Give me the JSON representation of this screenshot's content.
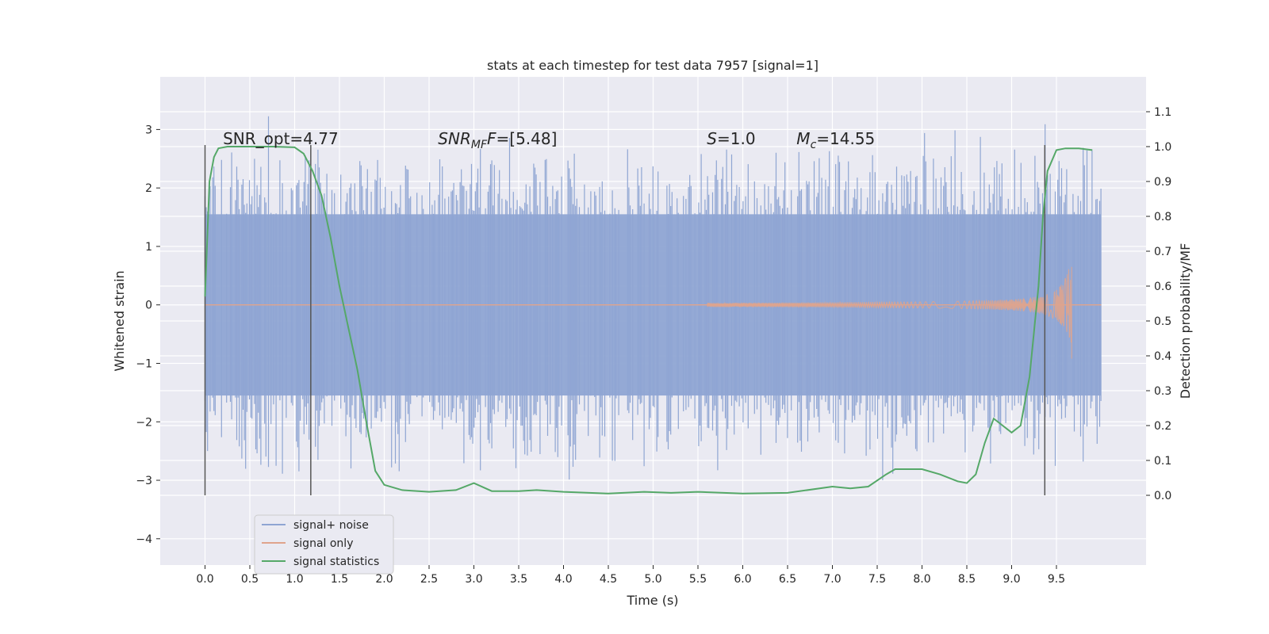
{
  "chart_data": {
    "type": "line",
    "title": "stats at each timestep for test data 7957 [signal=1]",
    "xlabel": "Time (s)",
    "ylabel": "Whitened strain",
    "ylabel_right": "Detection probability/MF",
    "xlim": [
      -0.5,
      10.5
    ],
    "ylim": [
      -4.45,
      3.9
    ],
    "ylim_right": [
      -0.2,
      1.2
    ],
    "x_ticks": [
      "0.0",
      "0.5",
      "1.0",
      "1.5",
      "2.0",
      "2.5",
      "3.0",
      "3.5",
      "4.0",
      "4.5",
      "5.0",
      "5.5",
      "6.0",
      "6.5",
      "7.0",
      "7.5",
      "8.0",
      "8.5",
      "9.0",
      "9.5"
    ],
    "x_tick_values": [
      0.0,
      0.5,
      1.0,
      1.5,
      2.0,
      2.5,
      3.0,
      3.5,
      4.0,
      4.5,
      5.0,
      5.5,
      6.0,
      6.5,
      7.0,
      7.5,
      8.0,
      8.5,
      9.0,
      9.5
    ],
    "y_ticks": [
      "3",
      "2",
      "1",
      "0",
      "−1",
      "−2",
      "−3",
      "−4"
    ],
    "y_tick_values": [
      3,
      2,
      1,
      0,
      -1,
      -2,
      -3,
      -4
    ],
    "y_ticks_right": [
      "1.1",
      "1.0",
      "0.9",
      "0.8",
      "0.7",
      "0.6",
      "0.5",
      "0.4",
      "0.3",
      "0.2",
      "0.1",
      "0.0"
    ],
    "y_tick_values_right": [
      1.1,
      1.0,
      0.9,
      0.8,
      0.7,
      0.6,
      0.5,
      0.4,
      0.3,
      0.2,
      0.1,
      0.0
    ],
    "grid": true,
    "legend_position": "lower-left",
    "series": [
      {
        "name": "signal+ noise",
        "color": "#8fa5d3",
        "kind": "noise",
        "x_range": [
          0,
          10
        ],
        "envelope": 1.55
      },
      {
        "name": "signal only",
        "color": "#e0a48c",
        "kind": "chirp",
        "x_range": [
          0,
          9.67
        ],
        "peak_x": 9.67,
        "peak_y": 0.65,
        "min_y": -0.92
      },
      {
        "name": "signal statistics",
        "color": "#55a868",
        "axis": "right",
        "x": [
          0.0,
          0.05,
          0.1,
          0.15,
          0.25,
          0.5,
          0.75,
          1.0,
          1.1,
          1.2,
          1.3,
          1.4,
          1.5,
          1.6,
          1.7,
          1.8,
          1.9,
          2.0,
          2.2,
          2.5,
          2.8,
          3.0,
          3.2,
          3.5,
          3.7,
          4.0,
          4.5,
          4.9,
          5.2,
          5.5,
          6.0,
          6.5,
          7.0,
          7.2,
          7.4,
          7.6,
          7.7,
          8.0,
          8.2,
          8.4,
          8.5,
          8.6,
          8.7,
          8.8,
          8.9,
          9.0,
          9.1,
          9.2,
          9.3,
          9.35,
          9.4,
          9.5,
          9.6,
          9.75,
          9.9
        ],
        "y": [
          0.57,
          0.9,
          0.97,
          0.995,
          1.0,
          1.0,
          1.0,
          0.998,
          0.98,
          0.93,
          0.86,
          0.74,
          0.6,
          0.48,
          0.36,
          0.21,
          0.07,
          0.03,
          0.015,
          0.01,
          0.015,
          0.035,
          0.012,
          0.012,
          0.015,
          0.01,
          0.005,
          0.01,
          0.007,
          0.01,
          0.005,
          0.007,
          0.025,
          0.02,
          0.025,
          0.06,
          0.075,
          0.075,
          0.06,
          0.04,
          0.035,
          0.06,
          0.15,
          0.22,
          0.2,
          0.18,
          0.2,
          0.34,
          0.6,
          0.8,
          0.93,
          0.99,
          0.995,
          0.995,
          0.99
        ]
      }
    ],
    "vlines_x": [
      0.0,
      1.18,
      9.37
    ],
    "annotations": [
      {
        "text": "SNR_opt=4.77",
        "x": 0.2,
        "y": 2.75
      },
      {
        "text": "SNR",
        "sub": "MF",
        "suffix": "=[5.48]",
        "x": 2.6,
        "y": 2.75,
        "italic": true
      },
      {
        "text": "S",
        "sub": "",
        "suffix": "=1.0",
        "x": 5.6,
        "y": 2.75,
        "italic": true
      },
      {
        "text": "M",
        "sub": "c",
        "suffix": "=14.55",
        "x": 6.6,
        "y": 2.75,
        "italic": true
      }
    ]
  }
}
